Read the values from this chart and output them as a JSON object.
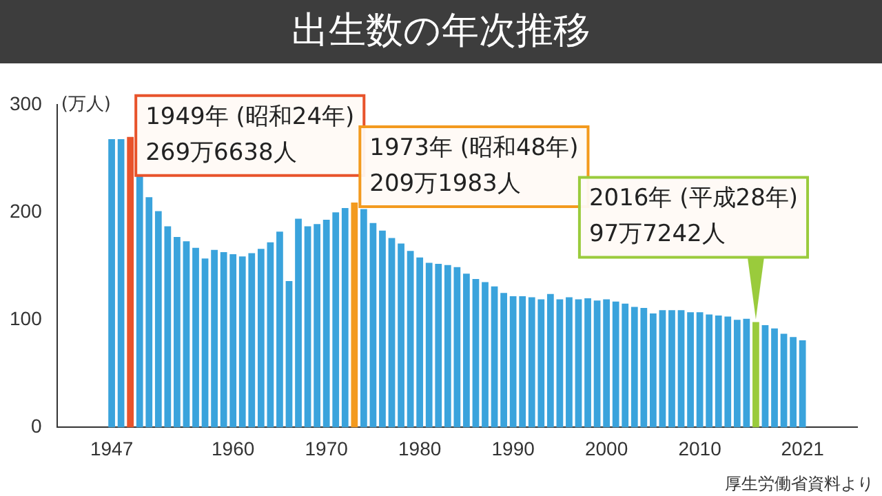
{
  "chart_data": {
    "type": "bar",
    "title": "出生数の年次推移",
    "ylabel": "(万人)",
    "x": [
      1947,
      1948,
      1949,
      1950,
      1951,
      1952,
      1953,
      1954,
      1955,
      1956,
      1957,
      1958,
      1959,
      1960,
      1961,
      1962,
      1963,
      1964,
      1965,
      1966,
      1967,
      1968,
      1969,
      1970,
      1971,
      1972,
      1973,
      1974,
      1975,
      1976,
      1977,
      1978,
      1979,
      1980,
      1981,
      1982,
      1983,
      1984,
      1985,
      1986,
      1987,
      1988,
      1989,
      1990,
      1991,
      1992,
      1993,
      1994,
      1995,
      1996,
      1997,
      1998,
      1999,
      2000,
      2001,
      2002,
      2003,
      2004,
      2005,
      2006,
      2007,
      2008,
      2009,
      2010,
      2011,
      2012,
      2013,
      2014,
      2015,
      2016,
      2017,
      2018,
      2019,
      2020,
      2021
    ],
    "values": [
      268,
      268,
      270,
      234,
      214,
      201,
      187,
      177,
      173,
      167,
      157,
      165,
      163,
      161,
      159,
      162,
      166,
      172,
      182,
      136,
      194,
      187,
      189,
      193,
      200,
      204,
      209,
      203,
      190,
      183,
      176,
      171,
      164,
      158,
      153,
      152,
      151,
      149,
      143,
      138,
      135,
      131,
      125,
      122,
      122,
      121,
      119,
      124,
      119,
      121,
      119,
      120,
      118,
      119,
      117,
      115,
      112,
      111,
      106,
      109,
      109,
      109,
      107,
      107,
      105,
      104,
      103,
      100,
      101,
      98,
      95,
      92,
      87,
      84,
      81
    ],
    "colors": [
      "#3aa3dc",
      "#3aa3dc",
      "#e8532b",
      "#3aa3dc",
      "#3aa3dc",
      "#3aa3dc",
      "#3aa3dc",
      "#3aa3dc",
      "#3aa3dc",
      "#3aa3dc",
      "#3aa3dc",
      "#3aa3dc",
      "#3aa3dc",
      "#3aa3dc",
      "#3aa3dc",
      "#3aa3dc",
      "#3aa3dc",
      "#3aa3dc",
      "#3aa3dc",
      "#3aa3dc",
      "#3aa3dc",
      "#3aa3dc",
      "#3aa3dc",
      "#3aa3dc",
      "#3aa3dc",
      "#3aa3dc",
      "#f39a1e",
      "#3aa3dc",
      "#3aa3dc",
      "#3aa3dc",
      "#3aa3dc",
      "#3aa3dc",
      "#3aa3dc",
      "#3aa3dc",
      "#3aa3dc",
      "#3aa3dc",
      "#3aa3dc",
      "#3aa3dc",
      "#3aa3dc",
      "#3aa3dc",
      "#3aa3dc",
      "#3aa3dc",
      "#3aa3dc",
      "#3aa3dc",
      "#3aa3dc",
      "#3aa3dc",
      "#3aa3dc",
      "#3aa3dc",
      "#3aa3dc",
      "#3aa3dc",
      "#3aa3dc",
      "#3aa3dc",
      "#3aa3dc",
      "#3aa3dc",
      "#3aa3dc",
      "#3aa3dc",
      "#3aa3dc",
      "#3aa3dc",
      "#3aa3dc",
      "#3aa3dc",
      "#3aa3dc",
      "#3aa3dc",
      "#3aa3dc",
      "#3aa3dc",
      "#3aa3dc",
      "#3aa3dc",
      "#3aa3dc",
      "#3aa3dc",
      "#3aa3dc",
      "#9acb3c",
      "#3aa3dc",
      "#3aa3dc",
      "#3aa3dc",
      "#3aa3dc",
      "#3aa3dc"
    ],
    "xlim": [
      1946.5,
      2021.5
    ],
    "xticks": [
      1947,
      1960,
      1970,
      1980,
      1990,
      2000,
      2010,
      2021
    ],
    "ylim": [
      0,
      300
    ],
    "yticks": [
      0,
      100,
      200,
      300
    ],
    "annotations": [
      {
        "text": "1949年 (昭和24年)\n269万6638人",
        "x": 1949,
        "y": 270
      },
      {
        "text": "1973年 (昭和48年)\n209万1983人",
        "x": 1973,
        "y": 209
      },
      {
        "text": "2016年 (平成28年)\n97万7242人",
        "x": 2016,
        "y": 98
      },
      "厚生労働省資料より"
    ],
    "grid": false,
    "legend": false
  }
}
